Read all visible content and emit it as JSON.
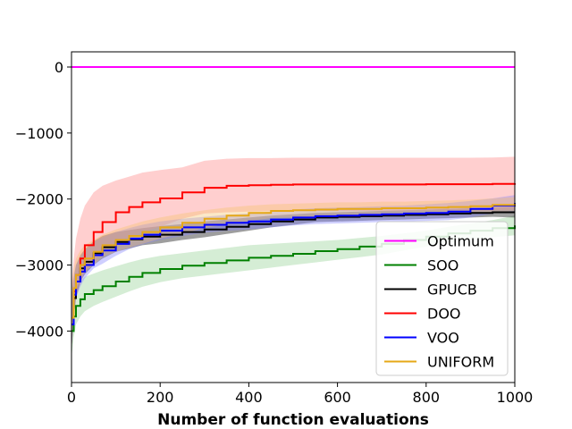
{
  "chart_data": {
    "type": "line",
    "title": "",
    "xlabel": "Number of function evaluations",
    "ylabel": "",
    "xlim": [
      0,
      1000
    ],
    "ylim": [
      -4780,
      230
    ],
    "xticks": [
      0,
      200,
      400,
      600,
      800,
      1000
    ],
    "xtick_labels": [
      "0",
      "200",
      "400",
      "600",
      "800",
      "1000"
    ],
    "yticks": [
      0,
      -1000,
      -2000,
      -3000,
      -4000
    ],
    "ytick_labels": [
      "0",
      "−1000",
      "−2000",
      "−3000",
      "−4000"
    ],
    "grid": false,
    "legend_position": "lower-right",
    "series": [
      {
        "name": "Optimum",
        "color": "#ff00ff",
        "x": [
          0,
          1000
        ],
        "y": [
          0,
          0
        ]
      },
      {
        "name": "SOO",
        "color": "#008000",
        "band_color": "#90d090",
        "x": [
          0,
          5,
          10,
          20,
          30,
          50,
          70,
          100,
          130,
          160,
          200,
          250,
          300,
          350,
          400,
          450,
          500,
          550,
          600,
          650,
          700,
          750,
          800,
          850,
          900,
          950,
          1000
        ],
        "y": [
          -4000,
          -3780,
          -3620,
          -3520,
          -3440,
          -3380,
          -3320,
          -3250,
          -3180,
          -3120,
          -3060,
          -3010,
          -2970,
          -2930,
          -2890,
          -2860,
          -2830,
          -2790,
          -2760,
          -2720,
          -2680,
          -2620,
          -2570,
          -2520,
          -2480,
          -2440,
          -2400
        ],
        "upper": [
          -3600,
          -3450,
          -3350,
          -3250,
          -3180,
          -3130,
          -3080,
          -3020,
          -2960,
          -2910,
          -2860,
          -2820,
          -2780,
          -2740,
          -2700,
          -2680,
          -2660,
          -2640,
          -2620,
          -2590,
          -2560,
          -2520,
          -2480,
          -2420,
          -2370,
          -2320,
          -2250
        ],
        "lower": [
          -4400,
          -4100,
          -3900,
          -3780,
          -3700,
          -3620,
          -3560,
          -3480,
          -3400,
          -3330,
          -3260,
          -3200,
          -3160,
          -3120,
          -3080,
          -3040,
          -3000,
          -2960,
          -2920,
          -2880,
          -2840,
          -2780,
          -2720,
          -2660,
          -2620,
          -2580,
          -2550
        ]
      },
      {
        "name": "GPUCB",
        "color": "#000000",
        "x": [
          0,
          5,
          10,
          20,
          30,
          50,
          70,
          100,
          130,
          160,
          200,
          250,
          300,
          350,
          400,
          450,
          500,
          550,
          600,
          650,
          700,
          750,
          800,
          850,
          900,
          950,
          1000
        ],
        "y": [
          -3900,
          -3500,
          -3250,
          -3050,
          -2950,
          -2820,
          -2730,
          -2650,
          -2610,
          -2570,
          -2540,
          -2500,
          -2460,
          -2420,
          -2380,
          -2340,
          -2310,
          -2280,
          -2270,
          -2260,
          -2250,
          -2240,
          -2230,
          -2220,
          -2210,
          -2200,
          -2200
        ],
        "upper": [
          -3500,
          -3200,
          -3000,
          -2850,
          -2760,
          -2640,
          -2560,
          -2500,
          -2470,
          -2440,
          -2410,
          -2380,
          -2340,
          -2310,
          -2280,
          -2250,
          -2230,
          -2210,
          -2200,
          -2190,
          -2180,
          -2170,
          -2160,
          -2150,
          -2140,
          -2130,
          -2120
        ],
        "lower": [
          -4300,
          -3800,
          -3500,
          -3250,
          -3140,
          -3000,
          -2900,
          -2800,
          -2750,
          -2700,
          -2670,
          -2620,
          -2580,
          -2530,
          -2480,
          -2430,
          -2390,
          -2350,
          -2340,
          -2330,
          -2320,
          -2310,
          -2300,
          -2290,
          -2280,
          -2270,
          -2280
        ]
      },
      {
        "name": "DOO",
        "color": "#ff0000",
        "band_color": "#ff8080",
        "x": [
          0,
          5,
          10,
          20,
          30,
          50,
          70,
          100,
          130,
          160,
          200,
          250,
          300,
          350,
          400,
          450,
          500,
          550,
          600,
          650,
          700,
          750,
          800,
          850,
          900,
          950,
          1000
        ],
        "y": [
          -3900,
          -3400,
          -3150,
          -2900,
          -2700,
          -2500,
          -2350,
          -2200,
          -2120,
          -2050,
          -1990,
          -1900,
          -1830,
          -1800,
          -1790,
          -1785,
          -1780,
          -1780,
          -1780,
          -1780,
          -1780,
          -1780,
          -1775,
          -1775,
          -1775,
          -1770,
          -1760
        ],
        "upper": [
          -3300,
          -2900,
          -2600,
          -2300,
          -2100,
          -1900,
          -1800,
          -1720,
          -1660,
          -1600,
          -1560,
          -1520,
          -1420,
          -1390,
          -1380,
          -1380,
          -1375,
          -1375,
          -1375,
          -1375,
          -1375,
          -1375,
          -1375,
          -1375,
          -1375,
          -1370,
          -1360
        ],
        "lower": [
          -4300,
          -3800,
          -3500,
          -3300,
          -3100,
          -2950,
          -2800,
          -2650,
          -2580,
          -2500,
          -2420,
          -2300,
          -2220,
          -2200,
          -2190,
          -2185,
          -2180,
          -2180,
          -2180,
          -2180,
          -2180,
          -2180,
          -2175,
          -2175,
          -2175,
          -2170,
          -2160
        ]
      },
      {
        "name": "VOO",
        "color": "#0000ff",
        "band_color": "#8080ff",
        "x": [
          0,
          5,
          10,
          20,
          30,
          50,
          70,
          100,
          130,
          160,
          200,
          250,
          300,
          350,
          400,
          450,
          500,
          550,
          600,
          650,
          700,
          750,
          800,
          850,
          900,
          950,
          1000
        ],
        "y": [
          -3900,
          -3450,
          -3250,
          -3100,
          -3000,
          -2850,
          -2780,
          -2680,
          -2600,
          -2540,
          -2480,
          -2430,
          -2390,
          -2360,
          -2340,
          -2310,
          -2280,
          -2260,
          -2250,
          -2240,
          -2230,
          -2220,
          -2210,
          -2190,
          -2150,
          -2100,
          -2060
        ],
        "upper": [
          -3500,
          -3150,
          -3000,
          -2880,
          -2780,
          -2650,
          -2580,
          -2500,
          -2440,
          -2390,
          -2340,
          -2300,
          -2270,
          -2240,
          -2220,
          -2190,
          -2160,
          -2140,
          -2130,
          -2120,
          -2110,
          -2100,
          -2080,
          -2060,
          -2030,
          -1990,
          -1940
        ],
        "lower": [
          -4300,
          -3750,
          -3500,
          -3320,
          -3200,
          -3050,
          -2980,
          -2860,
          -2760,
          -2690,
          -2620,
          -2560,
          -2510,
          -2480,
          -2460,
          -2430,
          -2400,
          -2380,
          -2370,
          -2360,
          -2350,
          -2340,
          -2330,
          -2320,
          -2280,
          -2220,
          -2180
        ]
      },
      {
        "name": "UNIFORM",
        "color": "#e6a817",
        "band_color": "#f5c26b",
        "x": [
          0,
          5,
          10,
          20,
          30,
          50,
          70,
          100,
          130,
          160,
          200,
          250,
          300,
          350,
          400,
          450,
          500,
          550,
          600,
          650,
          700,
          750,
          800,
          850,
          900,
          950,
          1000
        ],
        "y": [
          -3800,
          -3350,
          -3150,
          -3000,
          -2900,
          -2800,
          -2700,
          -2620,
          -2560,
          -2500,
          -2430,
          -2360,
          -2300,
          -2250,
          -2210,
          -2180,
          -2170,
          -2160,
          -2150,
          -2150,
          -2140,
          -2140,
          -2130,
          -2120,
          -2110,
          -2090,
          -2070
        ],
        "upper": [
          -3400,
          -3050,
          -2900,
          -2780,
          -2700,
          -2620,
          -2540,
          -2460,
          -2400,
          -2340,
          -2280,
          -2220,
          -2170,
          -2130,
          -2100,
          -2080,
          -2070,
          -2060,
          -2050,
          -2050,
          -2040,
          -2040,
          -2030,
          -2020,
          -2010,
          -1990,
          -1970
        ],
        "lower": [
          -4200,
          -3650,
          -3400,
          -3220,
          -3100,
          -3000,
          -2880,
          -2800,
          -2740,
          -2680,
          -2600,
          -2520,
          -2440,
          -2380,
          -2330,
          -2290,
          -2280,
          -2270,
          -2260,
          -2260,
          -2250,
          -2250,
          -2240,
          -2230,
          -2220,
          -2200,
          -2180
        ]
      }
    ]
  }
}
